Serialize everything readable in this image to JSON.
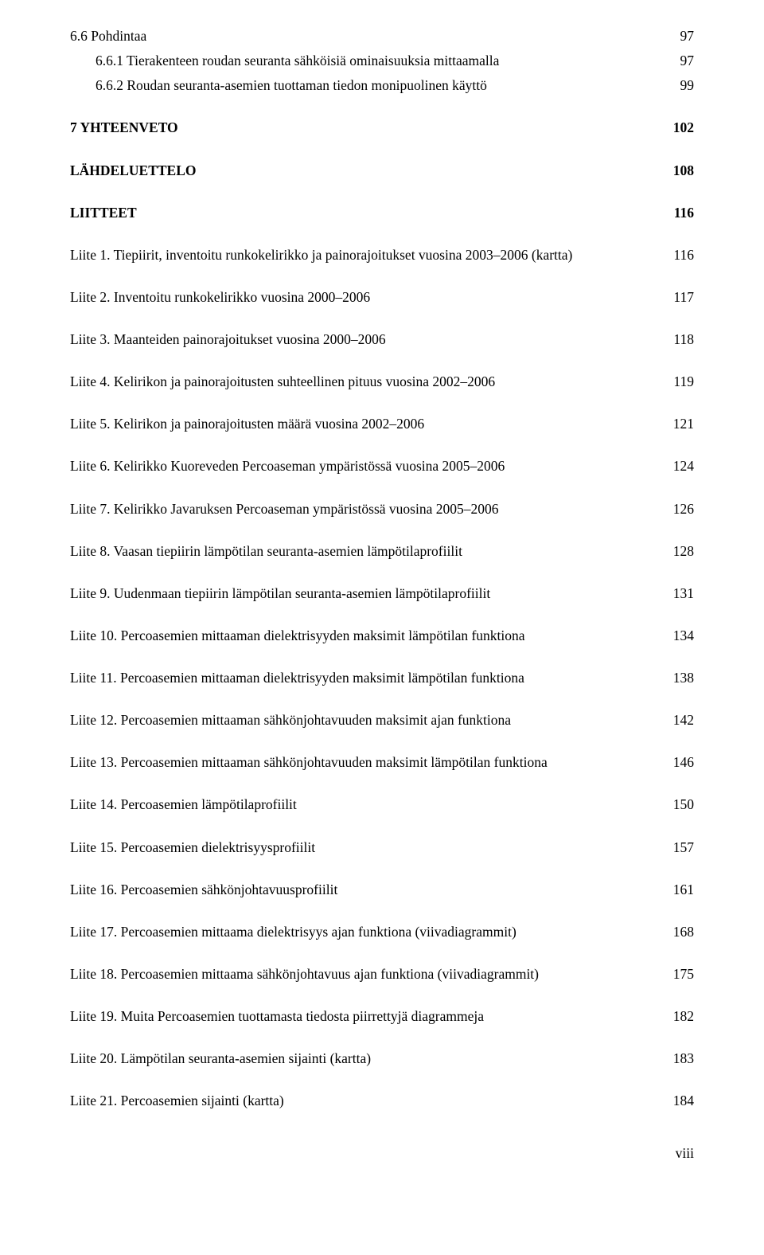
{
  "entries": [
    {
      "label": "6.6 Pohdintaa",
      "page": "97",
      "bold": false,
      "sub": false,
      "spaced": false
    },
    {
      "label": "6.6.1 Tierakenteen roudan seuranta sähköisiä ominaisuuksia mittaamalla",
      "page": "97",
      "bold": false,
      "sub": true,
      "spaced": false
    },
    {
      "label": "6.6.2 Roudan seuranta-asemien tuottaman tiedon monipuolinen käyttö",
      "page": "99",
      "bold": false,
      "sub": true,
      "spaced": false
    },
    {
      "label": "7 YHTEENVETO",
      "page": "102",
      "bold": true,
      "sub": false,
      "spaced": true
    },
    {
      "label": "LÄHDELUETTELO",
      "page": "108",
      "bold": true,
      "sub": false,
      "spaced": true
    },
    {
      "label": "LIITTEET",
      "page": "116",
      "bold": true,
      "sub": false,
      "spaced": true
    },
    {
      "label": "Liite 1. Tiepiirit, inventoitu runkokelirikko ja painorajoitukset vuosina 2003–2006 (kartta)",
      "page": "116",
      "bold": false,
      "sub": false,
      "spaced": true
    },
    {
      "label": "Liite 2. Inventoitu runkokelirikko vuosina 2000–2006",
      "page": "117",
      "bold": false,
      "sub": false,
      "spaced": true
    },
    {
      "label": "Liite 3. Maanteiden painorajoitukset vuosina 2000–2006",
      "page": "118",
      "bold": false,
      "sub": false,
      "spaced": true
    },
    {
      "label": "Liite 4. Kelirikon ja painorajoitusten suhteellinen pituus vuosina 2002–2006",
      "page": "119",
      "bold": false,
      "sub": false,
      "spaced": true
    },
    {
      "label": "Liite 5. Kelirikon ja painorajoitusten määrä vuosina 2002–2006",
      "page": "121",
      "bold": false,
      "sub": false,
      "spaced": true
    },
    {
      "label": "Liite 6. Kelirikko Kuoreveden Percoaseman ympäristössä vuosina 2005–2006",
      "page": "124",
      "bold": false,
      "sub": false,
      "spaced": true
    },
    {
      "label": "Liite 7. Kelirikko Javaruksen Percoaseman ympäristössä vuosina 2005–2006",
      "page": "126",
      "bold": false,
      "sub": false,
      "spaced": true
    },
    {
      "label": "Liite 8. Vaasan tiepiirin lämpötilan seuranta-asemien lämpötilaprofiilit",
      "page": "128",
      "bold": false,
      "sub": false,
      "spaced": true
    },
    {
      "label": "Liite 9. Uudenmaan tiepiirin lämpötilan seuranta-asemien lämpötilaprofiilit",
      "page": "131",
      "bold": false,
      "sub": false,
      "spaced": true
    },
    {
      "label": "Liite 10. Percoasemien mittaaman dielektrisyyden maksimit lämpötilan funktiona",
      "page": "134",
      "bold": false,
      "sub": false,
      "spaced": true
    },
    {
      "label": "Liite 11. Percoasemien mittaaman dielektrisyyden maksimit lämpötilan funktiona",
      "page": "138",
      "bold": false,
      "sub": false,
      "spaced": true
    },
    {
      "label": "Liite 12. Percoasemien mittaaman sähkönjohtavuuden maksimit ajan funktiona",
      "page": "142",
      "bold": false,
      "sub": false,
      "spaced": true
    },
    {
      "label": "Liite 13. Percoasemien mittaaman sähkönjohtavuuden maksimit lämpötilan funktiona",
      "page": "146",
      "bold": false,
      "sub": false,
      "spaced": true
    },
    {
      "label": "Liite 14. Percoasemien lämpötilaprofiilit",
      "page": "150",
      "bold": false,
      "sub": false,
      "spaced": true
    },
    {
      "label": "Liite 15. Percoasemien dielektrisyysprofiilit",
      "page": "157",
      "bold": false,
      "sub": false,
      "spaced": true
    },
    {
      "label": "Liite 16. Percoasemien sähkönjohtavuusprofiilit",
      "page": "161",
      "bold": false,
      "sub": false,
      "spaced": true
    },
    {
      "label": "Liite 17. Percoasemien mittaama dielektrisyys ajan funktiona (viivadiagrammit)",
      "page": "168",
      "bold": false,
      "sub": false,
      "spaced": true
    },
    {
      "label": "Liite 18. Percoasemien mittaama sähkönjohtavuus ajan funktiona (viivadiagrammit)",
      "page": "175",
      "bold": false,
      "sub": false,
      "spaced": true
    },
    {
      "label": "Liite 19. Muita Percoasemien tuottamasta tiedosta piirrettyjä diagrammeja",
      "page": "182",
      "bold": false,
      "sub": false,
      "spaced": true
    },
    {
      "label": "Liite 20. Lämpötilan seuranta-asemien sijainti (kartta)",
      "page": "183",
      "bold": false,
      "sub": false,
      "spaced": true
    },
    {
      "label": "Liite 21. Percoasemien sijainti (kartta)",
      "page": "184",
      "bold": false,
      "sub": false,
      "spaced": true
    }
  ],
  "footer": "viii"
}
